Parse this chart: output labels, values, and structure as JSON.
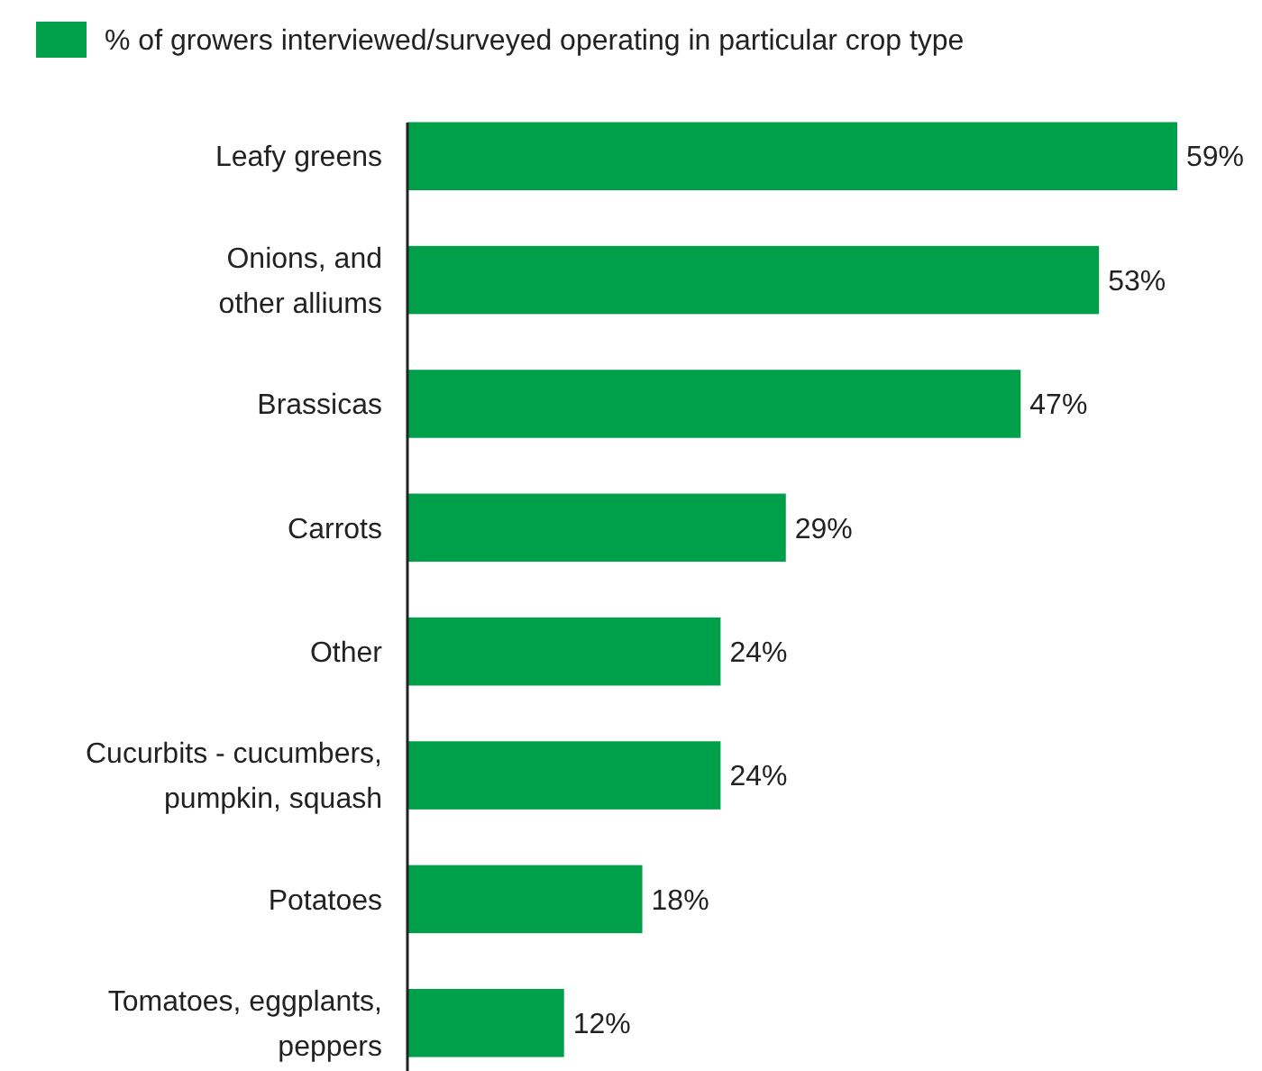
{
  "chart_data": {
    "type": "bar",
    "orientation": "horizontal",
    "legend": "top left",
    "categories": [
      "Leafy greens",
      "Onions, and\nother alliums",
      "Brassicas",
      "Carrots",
      "Other",
      "Cucurbits - cucumbers,\npumpkin, squash",
      "Potatoes",
      "Tomatoes, eggplants,\npeppers"
    ],
    "series": [
      {
        "name": "% of growers interviewed/surveyed operating in particular crop type",
        "color": "#00a04a",
        "values": [
          59,
          53,
          47,
          29,
          24,
          24,
          18,
          12
        ],
        "value_labels": [
          "59%",
          "53%",
          "47%",
          "29%",
          "24%",
          "24%",
          "18%",
          "12%"
        ]
      }
    ]
  }
}
